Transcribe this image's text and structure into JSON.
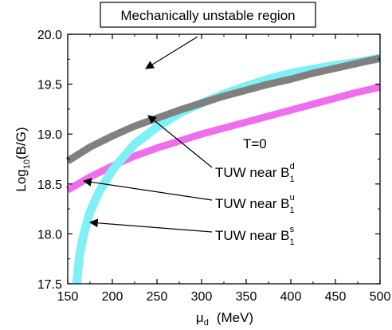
{
  "chart_data": {
    "type": "line",
    "title": "",
    "xlabel": {
      "main": "μ",
      "sub": "d",
      "rest": "(MeV)"
    },
    "ylabel": {
      "pre": "Log",
      "sub": "10",
      "post": "(B/G)"
    },
    "xlim": [
      150,
      500
    ],
    "ylim": [
      17.5,
      20.0
    ],
    "x_ticks": [
      "150",
      "200",
      "250",
      "300",
      "350",
      "400",
      "450",
      "500"
    ],
    "y_ticks": [
      "17.5",
      "18.0",
      "18.5",
      "19.0",
      "19.5",
      "20.0"
    ],
    "grid": false,
    "series": [
      {
        "label_main": "TUW near B",
        "label_sub": "1",
        "label_sup": "d",
        "color": "#808080",
        "x": [
          150,
          175,
          200,
          225,
          250,
          275,
          300,
          325,
          350,
          375,
          400,
          425,
          450,
          475,
          500
        ],
        "y": [
          18.73,
          18.87,
          18.98,
          19.08,
          19.16,
          19.24,
          19.31,
          19.38,
          19.44,
          19.5,
          19.55,
          19.61,
          19.66,
          19.71,
          19.76
        ]
      },
      {
        "label_main": "TUW near B",
        "label_sub": "1",
        "label_sup": "u",
        "color": "#ee6eee",
        "x": [
          150,
          175,
          200,
          225,
          250,
          275,
          300,
          325,
          350,
          375,
          400,
          425,
          450,
          475,
          500
        ],
        "y": [
          18.44,
          18.57,
          18.68,
          18.78,
          18.86,
          18.93,
          19.0,
          19.06,
          19.12,
          19.18,
          19.24,
          19.3,
          19.36,
          19.42,
          19.47
        ]
      },
      {
        "label_main": "TUW near B",
        "label_sub": "1",
        "label_sup": "s",
        "color": "#7ff0f5",
        "x": [
          160,
          163,
          168,
          175,
          185,
          200,
          225,
          250,
          275,
          300,
          325,
          350,
          375,
          400,
          425,
          450,
          475,
          500
        ],
        "y": [
          17.5,
          17.78,
          18.0,
          18.22,
          18.42,
          18.64,
          18.9,
          19.07,
          19.21,
          19.31,
          19.4,
          19.48,
          19.55,
          19.61,
          19.65,
          19.69,
          19.72,
          19.76
        ]
      }
    ],
    "annotations": {
      "box_text": "Mechanically unstable region",
      "condition": "T=0"
    }
  }
}
